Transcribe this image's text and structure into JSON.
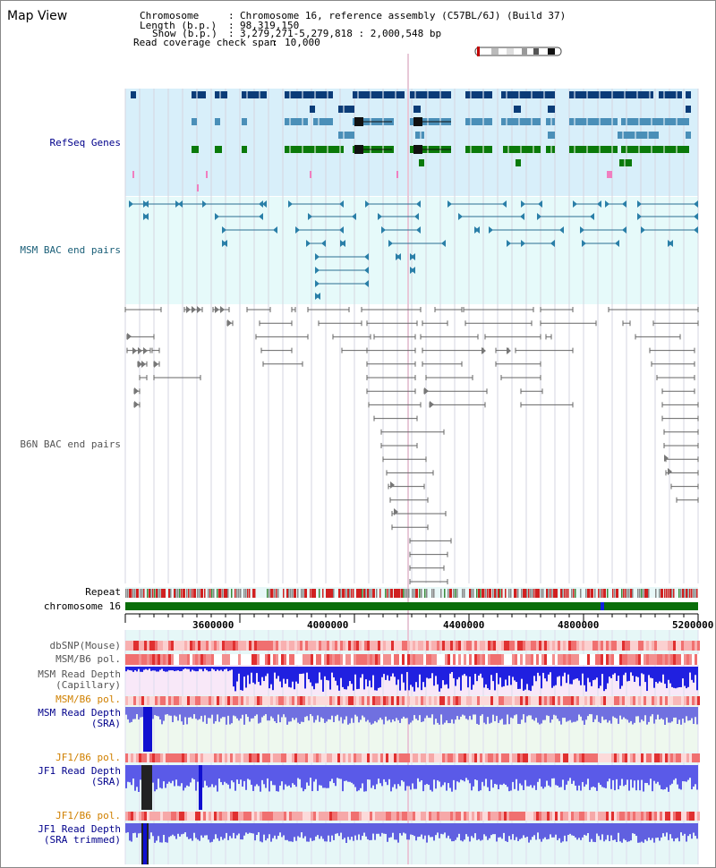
{
  "window": {
    "title": "Map View"
  },
  "info": {
    "chromosome_key": "Chromosome",
    "chromosome_val": "Chromosome 16, reference assembly (C57BL/6J) (Build 37)",
    "length_key": "Length (b.p.)",
    "length_val": "98,319,150",
    "show_key": "Show (b.p.)",
    "show_val": "3,279,271-5,279,818 : 2,000,548 bp",
    "read_key": "Read coverage check span",
    "read_val": "10,000"
  },
  "tracks": {
    "refseq": "RefSeq Genes",
    "msm_bac": "MSM BAC end pairs",
    "b6n_bac": "B6N BAC end pairs",
    "repeat": "Repeat",
    "chromosome": "chromosome 16",
    "dbsnp": "dbSNP(Mouse)",
    "msm_b6_pol_1": "MSM/B6 pol.",
    "msm_read_cap_1": "MSM Read Depth",
    "msm_read_cap_2": "(Capillary)",
    "msm_b6_pol_2": "MSM/B6 pol.",
    "msm_read_sra_1": "MSM Read Depth",
    "msm_read_sra_2": "(SRA)",
    "jf1_b6_pol_1": "JF1/B6 pol.",
    "jf1_read_sra_1": "JF1 Read Depth",
    "jf1_read_sra_2": "(SRA)",
    "jf1_b6_pol_2": "JF1/B6 pol.",
    "jf1_read_trim_1": "JF1 Read Depth",
    "jf1_read_trim_2": "(SRA trimmed)"
  },
  "axis": {
    "ticks": [
      "3600000",
      "4000000",
      "4400000",
      "4800000",
      "5200000"
    ]
  },
  "colors": {
    "refseq_bg": "#d8effa",
    "msm_bg": "#e6fafa",
    "navy": "#0b3c78",
    "steel": "#4a8fb8",
    "green": "#0a7a0a",
    "chrom_green": "#0a6e0a",
    "depth_blue": "#2020e0",
    "pol_red": "#f08080"
  }
}
